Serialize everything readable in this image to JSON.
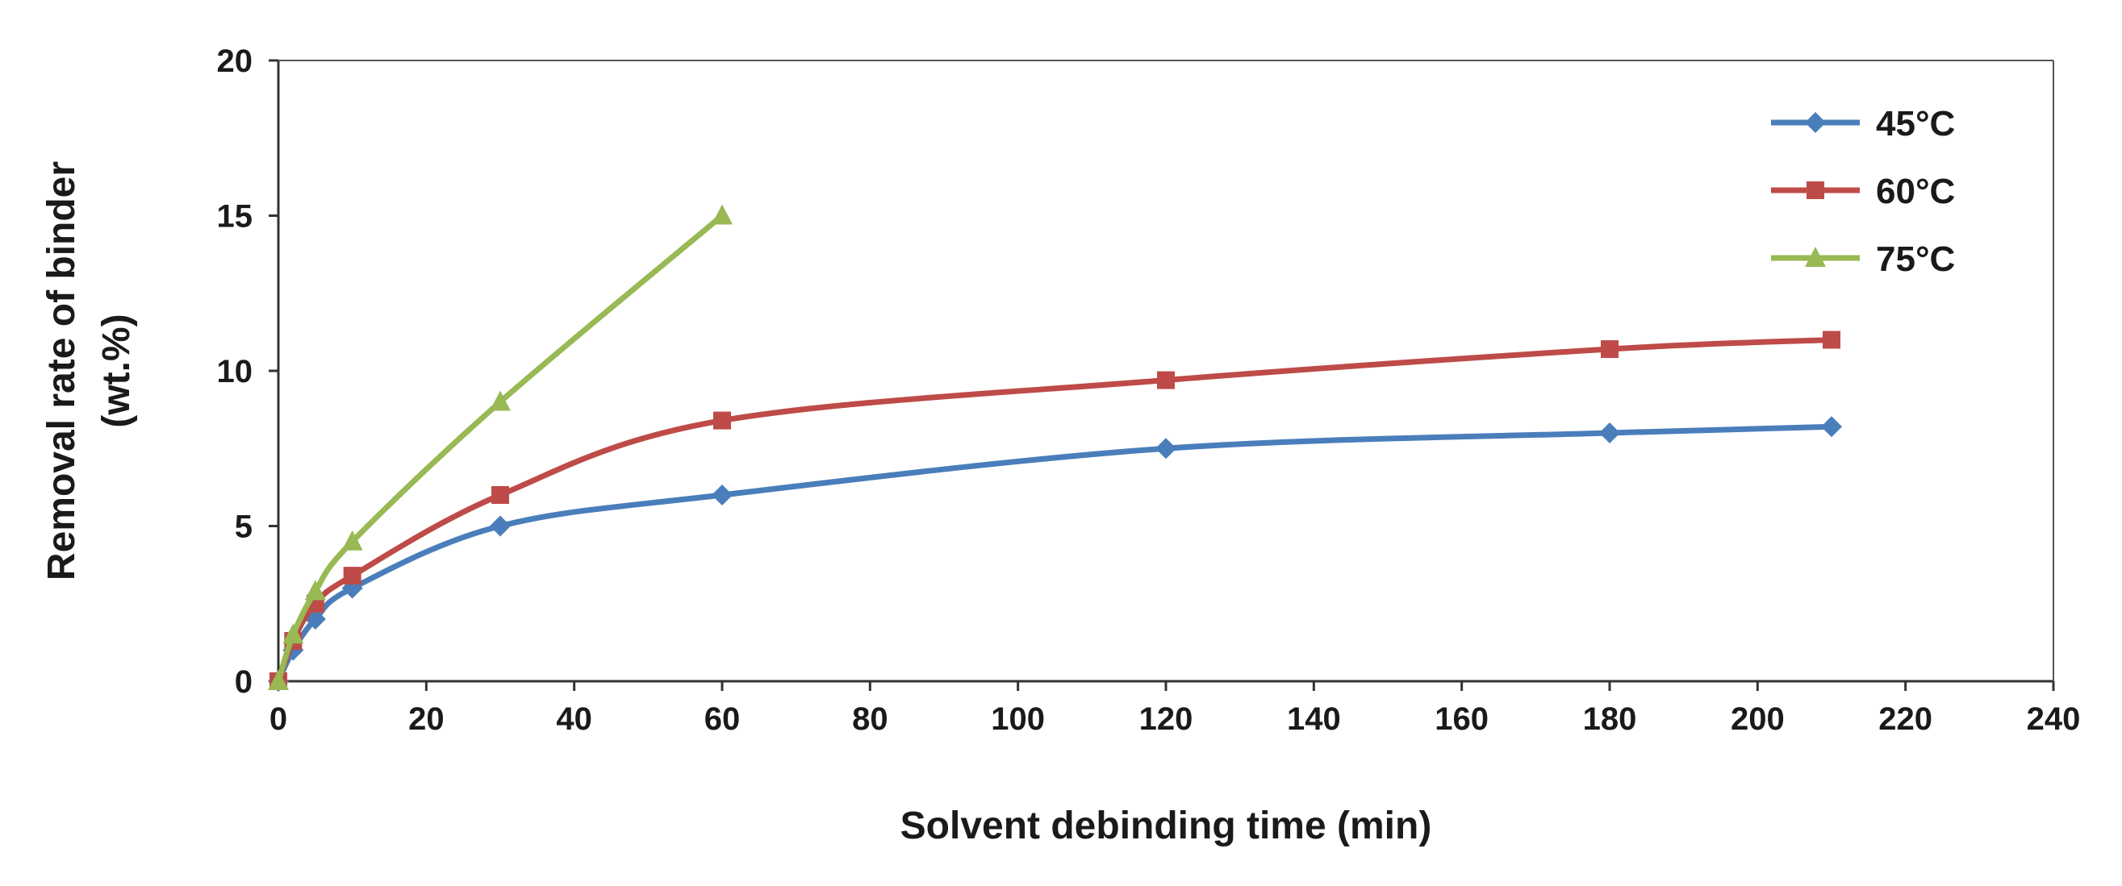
{
  "chart_data": {
    "type": "line",
    "title": "",
    "xlabel": "Solvent debinding time (min)",
    "ylabel_line1": "Removal rate of binder",
    "ylabel_line2": "(wt.%)",
    "xlim": [
      0,
      240
    ],
    "ylim": [
      0,
      20
    ],
    "x_ticks": [
      0,
      20,
      40,
      60,
      80,
      100,
      120,
      140,
      160,
      180,
      200,
      220,
      240
    ],
    "y_ticks": [
      0,
      5,
      10,
      15,
      20
    ],
    "x_tick_labels": [
      "0",
      "20",
      "40",
      "60",
      "80",
      "100",
      "120",
      "140",
      "160",
      "180",
      "200",
      "220",
      "240"
    ],
    "y_tick_labels": [
      "0",
      "5",
      "10",
      "15",
      "20"
    ],
    "grid": false,
    "legend_position": "top-right",
    "series": [
      {
        "name": "45°C",
        "color": "#4a7ebb",
        "marker": "diamond",
        "x": [
          0,
          2,
          5,
          10,
          30,
          60,
          120,
          180,
          210
        ],
        "values": [
          0,
          1.0,
          2.0,
          3.0,
          5.0,
          6.0,
          7.5,
          8.0,
          8.2
        ]
      },
      {
        "name": "60°C",
        "color": "#be4b48",
        "marker": "square",
        "x": [
          0,
          2,
          5,
          10,
          30,
          60,
          120,
          180,
          210
        ],
        "values": [
          0,
          1.3,
          2.5,
          3.4,
          6.0,
          8.4,
          9.7,
          10.7,
          11.0
        ]
      },
      {
        "name": "75°C",
        "color": "#98b954",
        "marker": "triangle",
        "x": [
          0,
          2,
          5,
          10,
          30,
          60
        ],
        "values": [
          0,
          1.5,
          2.9,
          4.5,
          9.0,
          15.0
        ]
      }
    ]
  }
}
